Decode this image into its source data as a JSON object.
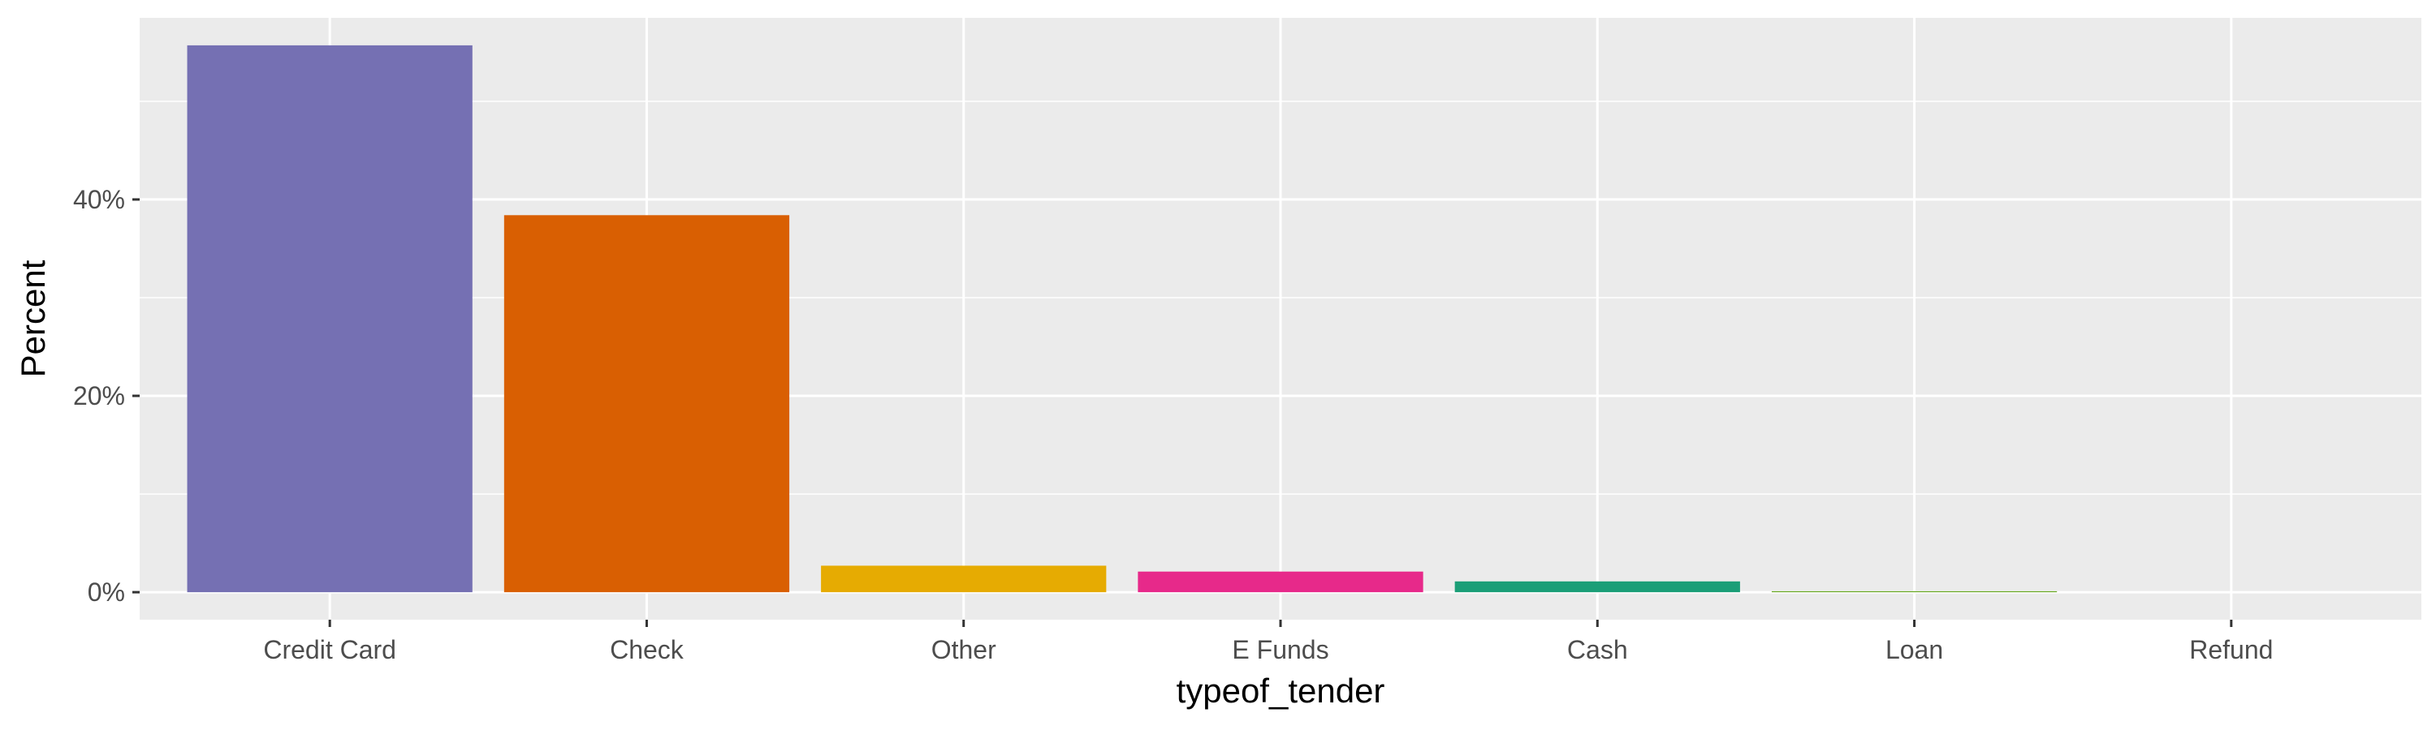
{
  "chart_data": {
    "type": "bar",
    "xlabel": "typeof_tender",
    "ylabel": "Percent",
    "categories": [
      "Credit Card",
      "Check",
      "Other",
      "E Funds",
      "Cash",
      "Loan",
      "Refund"
    ],
    "values": [
      55.7,
      38.4,
      2.7,
      2.1,
      1.1,
      0.1,
      0.0
    ],
    "colors": [
      "#7570B3",
      "#D95F02",
      "#E6AB02",
      "#E7298A",
      "#1B9E77",
      "#66A61E",
      "#A6761D"
    ],
    "yticks": [
      0,
      20,
      40
    ],
    "ytick_labels": [
      "0%",
      "20%",
      "40%"
    ],
    "ylim": [
      -2.8,
      58.5
    ],
    "grid": true,
    "legend": "none",
    "background": "#EBEBEB"
  }
}
